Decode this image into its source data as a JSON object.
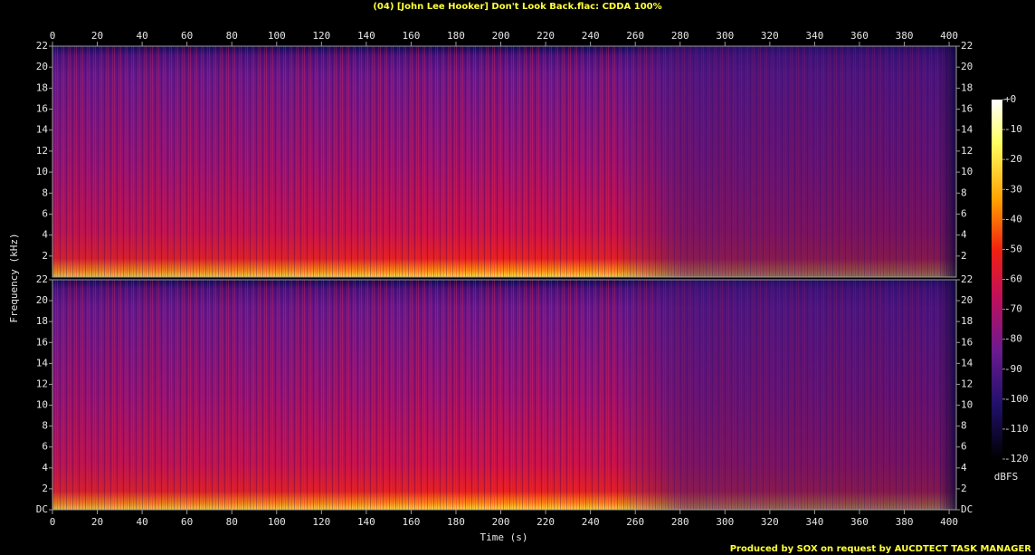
{
  "chart_data": {
    "type": "spectrogram",
    "title": "(04) [John Lee Hooker] Don't Look Back.flac: CDDA 100%",
    "footer": "Produced by SOX on request by AUCDTECT TASK MANAGER",
    "xlabel": "Time (s)",
    "ylabel": "Frequency (kHz)",
    "xlim": [
      0,
      403.2
    ],
    "xticks": [
      0,
      20,
      40,
      60,
      80,
      100,
      120,
      140,
      160,
      180,
      200,
      220,
      240,
      260,
      280,
      300,
      320,
      340,
      360,
      380,
      400
    ],
    "panels": [
      {
        "ylim": [
          0,
          22
        ],
        "yticks": [
          2,
          4,
          6,
          8,
          10,
          12,
          14,
          16,
          18,
          20,
          22
        ]
      },
      {
        "ylim": [
          0,
          22
        ],
        "yticks": [
          {
            "value": 0,
            "label": "DC"
          },
          2,
          4,
          6,
          8,
          10,
          12,
          14,
          16,
          18,
          20,
          22
        ]
      }
    ],
    "colorbar": {
      "label": "dBFS",
      "lim": [
        -120,
        0
      ],
      "ticks": [
        {
          "value": 0,
          "label": "+0"
        },
        -10,
        -20,
        -30,
        -40,
        -50,
        -60,
        -70,
        -80,
        -90,
        -100,
        -110,
        -120
      ]
    }
  }
}
